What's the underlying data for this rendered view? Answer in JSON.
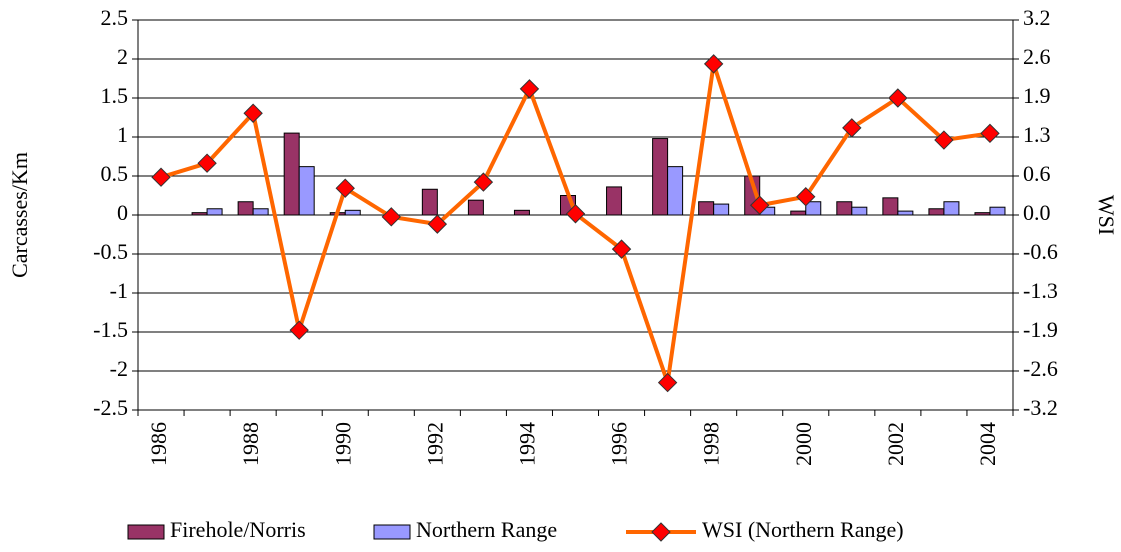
{
  "chart_data": {
    "type": "bar",
    "categories": [
      "1986",
      null,
      "1988",
      null,
      "1990",
      null,
      "1992",
      null,
      "1994",
      null,
      "1996",
      null,
      "1998",
      null,
      "2000",
      null,
      "2002",
      null,
      "2004"
    ],
    "ylabel": "Carcasses/Km",
    "y2label": "WSI",
    "ylim": [
      -2.5,
      2.5
    ],
    "yticks": [
      -2.5,
      -2,
      -1.5,
      -1,
      -0.5,
      0,
      0.5,
      1,
      1.5,
      2,
      2.5
    ],
    "y2lim": [
      -3.2,
      3.2
    ],
    "y2ticks": [
      -3.2,
      {
        "value": -2.56,
        "label": "-2.6"
      },
      {
        "value": -1.92,
        "label": "-1.9"
      },
      {
        "value": -1.28,
        "label": "-1.3"
      },
      {
        "value": -0.64,
        "label": "-0.6"
      },
      {
        "value": 0,
        "label": "0.0"
      },
      {
        "value": 0.64,
        "label": "0.6"
      },
      {
        "value": 1.28,
        "label": "1.3"
      },
      {
        "value": 1.92,
        "label": "1.9"
      },
      {
        "value": 2.56,
        "label": "2.6"
      },
      3.2
    ],
    "grid": true,
    "legend": "bottom",
    "series": [
      {
        "name": "Firehole/Norris",
        "type": "bar",
        "color": "#993366",
        "values": [
          null,
          0.03,
          0.17,
          1.05,
          0.03,
          null,
          0.33,
          0.19,
          0.06,
          0.25,
          0.36,
          0.98,
          0.17,
          0.5,
          0.05,
          0.17,
          0.22,
          0.08,
          0.03
        ]
      },
      {
        "name": "Northern Range",
        "type": "bar",
        "color": "#9999ff",
        "values": [
          null,
          0.08,
          0.08,
          0.62,
          0.06,
          null,
          null,
          null,
          null,
          null,
          null,
          0.62,
          0.14,
          0.1,
          0.17,
          0.1,
          0.05,
          0.17,
          0.1
        ]
      },
      {
        "name": "WSI (Northern Range)",
        "type": "line",
        "axis": "y2",
        "color": "#ff6600",
        "marker_color": "#ff0000",
        "values": [
          0.62,
          0.85,
          1.67,
          -1.89,
          0.44,
          -0.03,
          -0.15,
          0.54,
          2.07,
          0.02,
          -0.56,
          -2.75,
          2.48,
          0.16,
          0.3,
          1.43,
          1.92,
          1.23,
          1.34
        ]
      }
    ]
  }
}
